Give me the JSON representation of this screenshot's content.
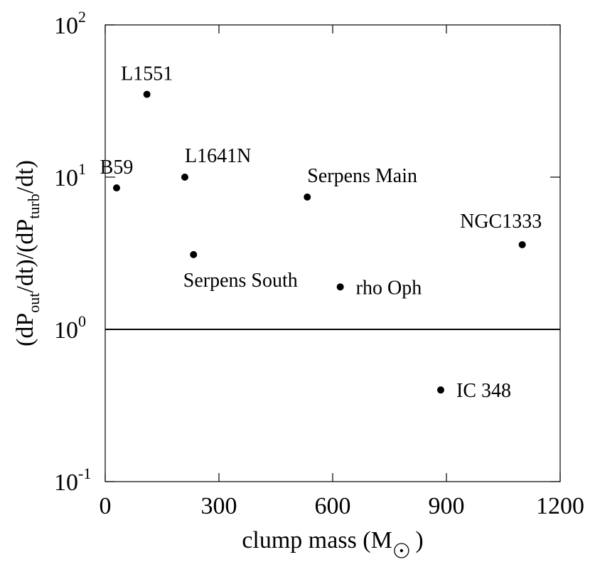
{
  "chart_data": {
    "type": "scatter",
    "title": "",
    "xlabel": {
      "prefix": "clump mass (M",
      "suffix": ")",
      "sun_symbol": "sun-symbol"
    },
    "ylabel": {
      "open": "(dP",
      "sub1": "out",
      "mid": "/dt)/(dP",
      "sub2": "turb",
      "close": "/dt)"
    },
    "xlim": [
      0,
      1200
    ],
    "ylim": [
      0.1,
      100
    ],
    "yscale": "log",
    "x_ticks": [
      {
        "value": 0,
        "label": "0"
      },
      {
        "value": 300,
        "label": "300"
      },
      {
        "value": 600,
        "label": "600"
      },
      {
        "value": 900,
        "label": "900"
      },
      {
        "value": 1200,
        "label": "1200"
      }
    ],
    "y_ticks": [
      {
        "value": 0.1,
        "base": "10",
        "exp": "-1"
      },
      {
        "value": 1,
        "base": "10",
        "exp": "0"
      },
      {
        "value": 10,
        "base": "10",
        "exp": "1"
      },
      {
        "value": 100,
        "base": "10",
        "exp": "2"
      }
    ],
    "reference_line": {
      "y": 1
    },
    "points": [
      {
        "label": "L1551",
        "x": 110,
        "y": 35,
        "label_pos": "above"
      },
      {
        "label": "B59",
        "x": 30,
        "y": 8.5,
        "label_pos": "above"
      },
      {
        "label": "L1641N",
        "x": 210,
        "y": 10,
        "label_pos": "above-right"
      },
      {
        "label": "Serpens Main",
        "x": 533,
        "y": 7.4,
        "label_pos": "above-right"
      },
      {
        "label": "NGC1333",
        "x": 1100,
        "y": 3.6,
        "label_pos": "above-left"
      },
      {
        "label": "Serpens South",
        "x": 233,
        "y": 3.1,
        "label_pos": "below"
      },
      {
        "label": "rho Oph",
        "x": 620,
        "y": 1.9,
        "label_pos": "right"
      },
      {
        "label": "IC 348",
        "x": 885,
        "y": 0.4,
        "label_pos": "right"
      }
    ],
    "grid": false,
    "legend": "none"
  }
}
